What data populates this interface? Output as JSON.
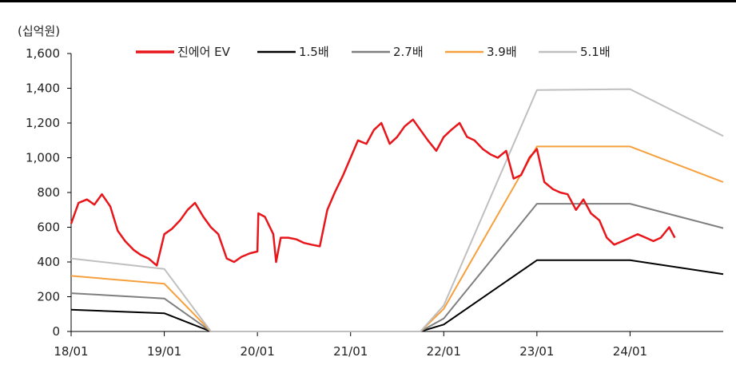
{
  "chart_data": {
    "type": "line",
    "unit_label": "(십억원)",
    "ylim": [
      0,
      1600
    ],
    "yticks": [
      0,
      200,
      400,
      600,
      800,
      1000,
      1200,
      1400,
      1600
    ],
    "ytick_labels": [
      "0",
      "200",
      "400",
      "600",
      "800",
      "1,000",
      "1,200",
      "1,400",
      "1,600"
    ],
    "xlim": [
      2018.0,
      2025.0
    ],
    "xticks": [
      2018,
      2019,
      2020,
      2021,
      2022,
      2023,
      2024
    ],
    "xtick_labels": [
      "18/01",
      "19/01",
      "20/01",
      "21/01",
      "22/01",
      "23/01",
      "24/01"
    ],
    "grid": false,
    "legend_position": "top",
    "series": [
      {
        "name": "진에어 EV",
        "color": "#e8161b",
        "x": [
          2018.0,
          2018.08,
          2018.17,
          2018.25,
          2018.33,
          2018.42,
          2018.5,
          2018.58,
          2018.67,
          2018.75,
          2018.83,
          2018.92,
          2019.0,
          2019.08,
          2019.17,
          2019.25,
          2019.33,
          2019.42,
          2019.5,
          2019.58,
          2019.67,
          2019.75,
          2019.83,
          2019.92,
          2020.0,
          2020.01,
          2020.08,
          2020.17,
          2020.2,
          2020.25,
          2020.33,
          2020.42,
          2020.5,
          2020.58,
          2020.67,
          2020.75,
          2020.83,
          2020.92,
          2021.0,
          2021.08,
          2021.17,
          2021.25,
          2021.33,
          2021.42,
          2021.5,
          2021.58,
          2021.67,
          2021.75,
          2021.83,
          2021.92,
          2022.0,
          2022.08,
          2022.17,
          2022.25,
          2022.33,
          2022.42,
          2022.5,
          2022.58,
          2022.67,
          2022.75,
          2022.83,
          2022.92,
          2023.0,
          2023.08,
          2023.17,
          2023.25,
          2023.33,
          2023.42,
          2023.5,
          2023.58,
          2023.67,
          2023.75,
          2023.83,
          2023.92,
          2024.0,
          2024.08,
          2024.17,
          2024.25,
          2024.33,
          2024.42,
          2024.48
        ],
        "y": [
          620,
          740,
          760,
          730,
          790,
          720,
          580,
          520,
          470,
          440,
          420,
          380,
          560,
          590,
          640,
          700,
          740,
          660,
          600,
          560,
          420,
          400,
          430,
          450,
          460,
          680,
          660,
          560,
          400,
          540,
          540,
          530,
          510,
          500,
          490,
          700,
          800,
          900,
          1000,
          1100,
          1080,
          1160,
          1200,
          1080,
          1120,
          1180,
          1220,
          1160,
          1100,
          1040,
          1120,
          1160,
          1200,
          1120,
          1100,
          1050,
          1020,
          1000,
          1040,
          880,
          900,
          1000,
          1050,
          860,
          820,
          800,
          790,
          700,
          760,
          680,
          640,
          540,
          500,
          520,
          540,
          560,
          540,
          520,
          540,
          600,
          540
        ]
      },
      {
        "name": "1.5배",
        "color": "#000000",
        "x": [
          2018.0,
          2019.0,
          2019.5,
          2021.75,
          2022.0,
          2023.0,
          2024.0,
          2025.0
        ],
        "y": [
          125,
          105,
          0,
          0,
          40,
          410,
          410,
          330
        ]
      },
      {
        "name": "2.7배",
        "color": "#7f7f7f",
        "x": [
          2018.0,
          2019.0,
          2019.5,
          2021.75,
          2022.0,
          2023.0,
          2024.0,
          2025.0
        ],
        "y": [
          220,
          190,
          0,
          0,
          75,
          735,
          735,
          595
        ]
      },
      {
        "name": "3.9배",
        "color": "#f5a03c",
        "x": [
          2018.0,
          2019.0,
          2019.5,
          2021.75,
          2022.0,
          2023.0,
          2024.0,
          2025.0
        ],
        "y": [
          320,
          275,
          0,
          0,
          130,
          1065,
          1065,
          860
        ]
      },
      {
        "name": "5.1배",
        "color": "#bfbfbf",
        "x": [
          2018.0,
          2019.0,
          2019.5,
          2021.75,
          2022.0,
          2023.0,
          2024.0,
          2025.0
        ],
        "y": [
          420,
          360,
          0,
          0,
          150,
          1390,
          1395,
          1125
        ]
      }
    ]
  }
}
